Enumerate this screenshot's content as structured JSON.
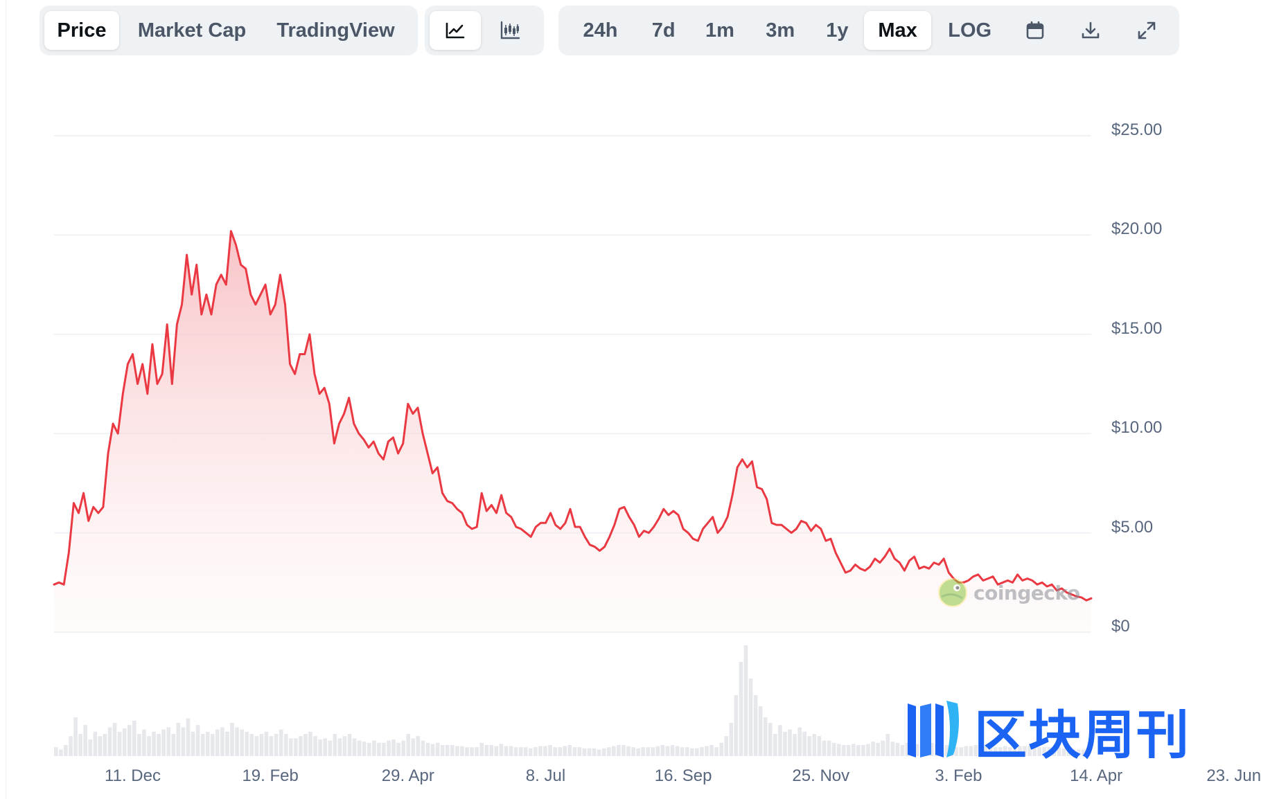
{
  "toolbar": {
    "metric_tabs": [
      {
        "label": "Price",
        "active": true
      },
      {
        "label": "Market Cap",
        "active": false
      },
      {
        "label": "TradingView",
        "active": false
      }
    ],
    "chart_types": [
      {
        "icon": "line-chart-icon",
        "active": true
      },
      {
        "icon": "candlestick-chart-icon",
        "active": false
      }
    ],
    "ranges": [
      {
        "label": "24h",
        "active": false
      },
      {
        "label": "7d",
        "active": false
      },
      {
        "label": "1m",
        "active": false
      },
      {
        "label": "3m",
        "active": false
      },
      {
        "label": "1y",
        "active": false
      },
      {
        "label": "Max",
        "active": true
      },
      {
        "label": "LOG",
        "active": false
      }
    ],
    "actions": [
      {
        "icon": "calendar-icon"
      },
      {
        "icon": "download-icon"
      },
      {
        "icon": "expand-icon"
      }
    ]
  },
  "colors": {
    "line": "#ea3943",
    "area_top": "#f9cfd1",
    "grid": "#eceff3",
    "volume": "#e6e8ec",
    "toolbar_bg": "#eff2f5",
    "watermark": "#1b63f2"
  },
  "watermark": {
    "coingecko_text": "coingecko",
    "publisher_text": "区块周刊"
  },
  "chart_data": {
    "type": "area",
    "title": "",
    "xlabel": "",
    "ylabel": "",
    "ylim": [
      0,
      25
    ],
    "grid": true,
    "y_tick_labels": [
      "$0",
      "$5.00",
      "$10.00",
      "$15.00",
      "$20.00",
      "$25.00"
    ],
    "y_ticks": [
      0,
      5,
      10,
      15,
      20,
      25
    ],
    "x_tick_labels": [
      "11. Dec",
      "19. Feb",
      "29. Apr",
      "8. Jul",
      "16. Sep",
      "25. Nov",
      "3. Feb",
      "14. Apr",
      "23. Jun"
    ],
    "x_tick_index": [
      16,
      44,
      72,
      100,
      128,
      156,
      184,
      212,
      240
    ],
    "series": [
      {
        "values": [
          2.4,
          2.5,
          2.4,
          4.0,
          6.5,
          6.0,
          7.0,
          5.6,
          6.3,
          6.0,
          6.3,
          9.0,
          10.5,
          10.0,
          12.0,
          13.5,
          14.0,
          12.5,
          13.5,
          12.0,
          14.5,
          12.5,
          13.0,
          15.5,
          12.5,
          15.5,
          16.5,
          19.0,
          17.0,
          18.5,
          16.0,
          17.0,
          16.0,
          17.5,
          18.0,
          17.5,
          20.2,
          19.5,
          18.5,
          18.3,
          17.0,
          16.5,
          17.0,
          17.5,
          16.0,
          16.5,
          18.0,
          16.5,
          13.5,
          13.0,
          14.0,
          14.0,
          15.0,
          13.0,
          12.0,
          12.3,
          11.5,
          9.5,
          10.5,
          11.0,
          11.8,
          10.5,
          10.0,
          9.7,
          9.3,
          9.6,
          9.0,
          8.7,
          9.6,
          9.8,
          9.0,
          9.5,
          11.5,
          11.0,
          11.3,
          10.0,
          9.0,
          8.0,
          8.3,
          7.0,
          6.6,
          6.5,
          6.2,
          6.0,
          5.4,
          5.2,
          5.3,
          7.0,
          6.1,
          6.4,
          6.0,
          6.9,
          6.0,
          5.8,
          5.3,
          5.2,
          5.0,
          4.8,
          5.3,
          5.5,
          5.5,
          6.0,
          5.4,
          5.2,
          5.5,
          6.2,
          5.3,
          5.3,
          4.8,
          4.4,
          4.3,
          4.1,
          4.3,
          4.8,
          5.4,
          6.2,
          6.3,
          5.8,
          5.4,
          4.8,
          5.1,
          5.0,
          5.3,
          5.7,
          6.2,
          5.9,
          6.1,
          5.9,
          5.2,
          5.0,
          4.7,
          4.6,
          5.2,
          5.5,
          5.8,
          5.0,
          5.3,
          5.8,
          6.9,
          8.3,
          8.7,
          8.3,
          8.6,
          7.3,
          7.2,
          6.7,
          5.5,
          5.4,
          5.4,
          5.2,
          5.0,
          5.2,
          5.6,
          5.5,
          5.1,
          5.4,
          5.2,
          4.6,
          4.7,
          4.0,
          3.5,
          3.0,
          3.1,
          3.4,
          3.2,
          3.1,
          3.3,
          3.7,
          3.5,
          3.8,
          4.2,
          3.7,
          3.5,
          3.1,
          3.6,
          3.8,
          3.2,
          3.3,
          3.2,
          3.5,
          3.4,
          3.7,
          3.0,
          2.7,
          2.5,
          2.5,
          2.6,
          2.8,
          2.9,
          2.6,
          2.7,
          2.8,
          2.4,
          2.5,
          2.6,
          2.5,
          2.9,
          2.6,
          2.7,
          2.6,
          2.4,
          2.5,
          2.3,
          2.4,
          2.1,
          2.2,
          2.0,
          1.9,
          1.8,
          1.75,
          1.6,
          1.7
        ]
      }
    ],
    "volume": [
      0.08,
      0.06,
      0.1,
      0.18,
      0.35,
      0.2,
      0.28,
      0.15,
      0.22,
      0.18,
      0.2,
      0.26,
      0.3,
      0.22,
      0.25,
      0.28,
      0.32,
      0.2,
      0.24,
      0.18,
      0.22,
      0.2,
      0.24,
      0.26,
      0.2,
      0.3,
      0.26,
      0.34,
      0.22,
      0.28,
      0.2,
      0.22,
      0.2,
      0.24,
      0.26,
      0.22,
      0.3,
      0.26,
      0.24,
      0.22,
      0.2,
      0.18,
      0.2,
      0.22,
      0.18,
      0.2,
      0.24,
      0.2,
      0.16,
      0.16,
      0.18,
      0.2,
      0.22,
      0.18,
      0.15,
      0.16,
      0.14,
      0.2,
      0.16,
      0.18,
      0.2,
      0.16,
      0.14,
      0.13,
      0.12,
      0.14,
      0.12,
      0.12,
      0.14,
      0.15,
      0.12,
      0.14,
      0.2,
      0.16,
      0.18,
      0.14,
      0.12,
      0.11,
      0.12,
      0.1,
      0.1,
      0.1,
      0.09,
      0.09,
      0.08,
      0.08,
      0.08,
      0.12,
      0.1,
      0.1,
      0.09,
      0.11,
      0.09,
      0.09,
      0.08,
      0.08,
      0.08,
      0.07,
      0.08,
      0.09,
      0.09,
      0.1,
      0.08,
      0.08,
      0.09,
      0.1,
      0.08,
      0.08,
      0.07,
      0.07,
      0.07,
      0.06,
      0.07,
      0.08,
      0.09,
      0.1,
      0.1,
      0.09,
      0.08,
      0.07,
      0.08,
      0.08,
      0.08,
      0.09,
      0.1,
      0.09,
      0.1,
      0.09,
      0.08,
      0.08,
      0.07,
      0.07,
      0.08,
      0.09,
      0.1,
      0.08,
      0.12,
      0.18,
      0.3,
      0.55,
      0.85,
      1.0,
      0.7,
      0.55,
      0.45,
      0.35,
      0.3,
      0.2,
      0.28,
      0.22,
      0.24,
      0.2,
      0.26,
      0.22,
      0.18,
      0.2,
      0.18,
      0.14,
      0.14,
      0.12,
      0.11,
      0.1,
      0.1,
      0.11,
      0.1,
      0.1,
      0.11,
      0.13,
      0.12,
      0.14,
      0.2,
      0.13,
      0.12,
      0.1,
      0.12,
      0.13,
      0.11,
      0.11,
      0.1,
      0.12,
      0.11,
      0.12,
      0.1,
      0.09,
      0.08,
      0.08,
      0.09,
      0.09,
      0.1,
      0.08,
      0.09,
      0.09,
      0.08,
      0.08,
      0.09,
      0.08,
      0.1,
      0.09,
      0.09,
      0.09,
      0.08,
      0.08,
      0.08,
      0.08,
      0.07,
      0.08,
      0.07,
      0.07,
      0.06,
      0.06,
      0.06,
      0.06
    ]
  }
}
